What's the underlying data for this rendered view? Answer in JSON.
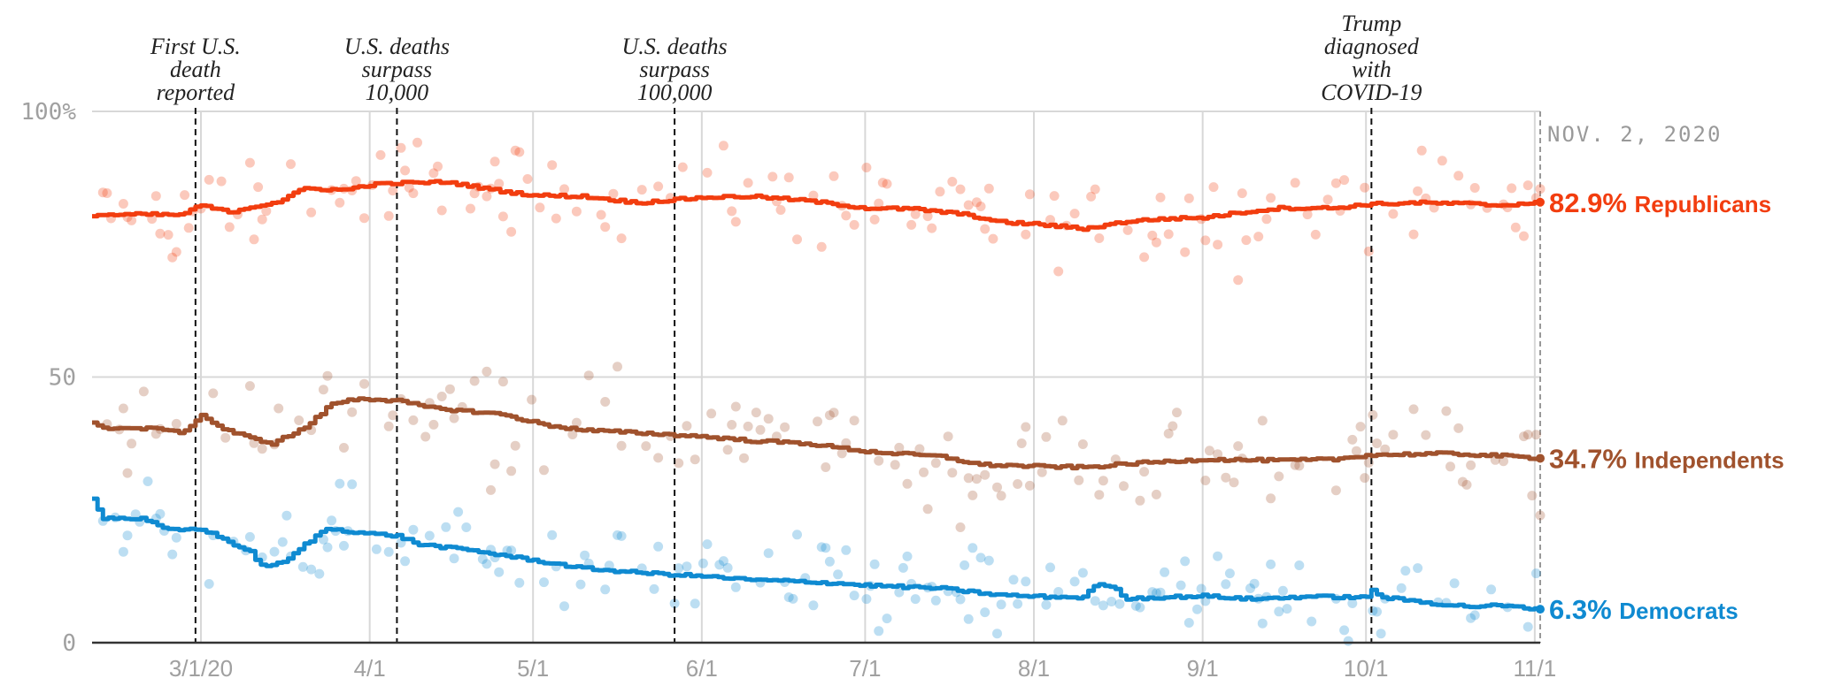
{
  "colors": {
    "republicans": "#f23d0f",
    "independents": "#a0522d",
    "democrats": "#0f8ad1",
    "grid": "#d8d8d8",
    "axis": "#333333"
  },
  "chart_data": {
    "type": "line",
    "date_stamp": "NOV. 2, 2020",
    "x_start": "2020-02-10",
    "x_end": "2020-11-02",
    "ylim": [
      0,
      100
    ],
    "y_ticks": [
      {
        "value": 0,
        "label": "0"
      },
      {
        "value": 50,
        "label": "50"
      },
      {
        "value": 100,
        "label": "100%"
      }
    ],
    "x_ticks": [
      {
        "date": "2020-03-01",
        "label": "3/1/20"
      },
      {
        "date": "2020-04-01",
        "label": "4/1"
      },
      {
        "date": "2020-05-01",
        "label": "5/1"
      },
      {
        "date": "2020-06-01",
        "label": "6/1"
      },
      {
        "date": "2020-07-01",
        "label": "7/1"
      },
      {
        "date": "2020-08-01",
        "label": "8/1"
      },
      {
        "date": "2020-09-01",
        "label": "9/1"
      },
      {
        "date": "2020-10-01",
        "label": "10/1"
      },
      {
        "date": "2020-11-01",
        "label": "11/1"
      }
    ],
    "events": [
      {
        "date": "2020-02-29",
        "lines": [
          "First U.S.",
          "death",
          "reported"
        ]
      },
      {
        "date": "2020-04-06",
        "lines": [
          "U.S. deaths",
          "surpass",
          "10,000"
        ]
      },
      {
        "date": "2020-05-27",
        "lines": [
          "U.S. deaths",
          "surpass",
          "100,000"
        ]
      },
      {
        "date": "2020-10-02",
        "lines": [
          "Trump",
          "diagnosed",
          "with",
          "COVID-19"
        ]
      }
    ],
    "series": [
      {
        "key": "republicans",
        "end_value": "82.9%",
        "end_name": "Republicans",
        "points": [
          [
            "2020-02-10",
            80.5
          ],
          [
            "2020-02-20",
            80.6
          ],
          [
            "2020-02-26",
            80.5
          ],
          [
            "2020-03-01",
            82.3
          ],
          [
            "2020-03-06",
            81.0
          ],
          [
            "2020-03-10",
            82.0
          ],
          [
            "2020-03-15",
            83.0
          ],
          [
            "2020-03-20",
            85.5
          ],
          [
            "2020-03-27",
            85.2
          ],
          [
            "2020-04-01",
            86.2
          ],
          [
            "2020-04-06",
            86.5
          ],
          [
            "2020-04-15",
            86.7
          ],
          [
            "2020-04-25",
            85.0
          ],
          [
            "2020-05-01",
            84.2
          ],
          [
            "2020-05-10",
            84.0
          ],
          [
            "2020-05-20",
            82.8
          ],
          [
            "2020-06-01",
            83.8
          ],
          [
            "2020-06-10",
            84.0
          ],
          [
            "2020-06-20",
            83.2
          ],
          [
            "2020-07-01",
            81.8
          ],
          [
            "2020-07-10",
            81.6
          ],
          [
            "2020-07-20",
            80.5
          ],
          [
            "2020-07-25",
            79.2
          ],
          [
            "2020-08-01",
            78.8
          ],
          [
            "2020-08-10",
            77.9
          ],
          [
            "2020-08-18",
            79.3
          ],
          [
            "2020-08-25",
            79.8
          ],
          [
            "2020-09-01",
            80.0
          ],
          [
            "2020-09-08",
            81.0
          ],
          [
            "2020-09-15",
            81.8
          ],
          [
            "2020-09-25",
            81.8
          ],
          [
            "2020-10-01",
            82.5
          ],
          [
            "2020-10-10",
            82.8
          ],
          [
            "2020-10-20",
            82.6
          ],
          [
            "2020-10-25",
            82.3
          ],
          [
            "2020-11-02",
            82.9
          ]
        ]
      },
      {
        "key": "independents",
        "end_value": "34.7%",
        "end_name": "Independents",
        "points": [
          [
            "2020-02-10",
            41.2
          ],
          [
            "2020-02-13",
            40.4
          ],
          [
            "2020-02-24",
            40.2
          ],
          [
            "2020-02-26",
            39.2
          ],
          [
            "2020-03-01",
            42.8
          ],
          [
            "2020-03-05",
            40.2
          ],
          [
            "2020-03-10",
            38.5
          ],
          [
            "2020-03-14",
            37.5
          ],
          [
            "2020-03-20",
            40.5
          ],
          [
            "2020-03-25",
            45.0
          ],
          [
            "2020-03-30",
            46.0
          ],
          [
            "2020-04-06",
            45.5
          ],
          [
            "2020-04-12",
            44.2
          ],
          [
            "2020-04-25",
            43.0
          ],
          [
            "2020-05-03",
            41.0
          ],
          [
            "2020-05-10",
            40.0
          ],
          [
            "2020-05-20",
            39.5
          ],
          [
            "2020-06-01",
            38.8
          ],
          [
            "2020-06-10",
            38.0
          ],
          [
            "2020-06-20",
            37.5
          ],
          [
            "2020-07-01",
            36.0
          ],
          [
            "2020-07-15",
            35.0
          ],
          [
            "2020-07-22",
            33.5
          ],
          [
            "2020-08-01",
            33.2
          ],
          [
            "2020-08-10",
            33.0
          ],
          [
            "2020-08-20",
            33.8
          ],
          [
            "2020-09-01",
            34.5
          ],
          [
            "2020-09-15",
            34.3
          ],
          [
            "2020-09-25",
            34.5
          ],
          [
            "2020-10-01",
            35.3
          ],
          [
            "2020-10-15",
            35.6
          ],
          [
            "2020-10-25",
            35.2
          ],
          [
            "2020-11-02",
            34.7
          ]
        ]
      },
      {
        "key": "democrats",
        "end_value": "6.3%",
        "end_name": "Democrats",
        "points": [
          [
            "2020-02-10",
            27.0
          ],
          [
            "2020-02-12",
            23.5
          ],
          [
            "2020-02-19",
            23.3
          ],
          [
            "2020-02-24",
            21.2
          ],
          [
            "2020-03-01",
            21.4
          ],
          [
            "2020-03-05",
            19.5
          ],
          [
            "2020-03-10",
            17.0
          ],
          [
            "2020-03-12",
            14.5
          ],
          [
            "2020-03-16",
            15.0
          ],
          [
            "2020-03-20",
            18.5
          ],
          [
            "2020-03-24",
            21.5
          ],
          [
            "2020-04-01",
            20.5
          ],
          [
            "2020-04-06",
            20.1
          ],
          [
            "2020-04-10",
            18.5
          ],
          [
            "2020-04-20",
            17.3
          ],
          [
            "2020-05-01",
            15.5
          ],
          [
            "2020-05-10",
            14.0
          ],
          [
            "2020-05-20",
            13.2
          ],
          [
            "2020-06-01",
            12.5
          ],
          [
            "2020-06-10",
            11.8
          ],
          [
            "2020-06-20",
            11.5
          ],
          [
            "2020-07-01",
            10.8
          ],
          [
            "2020-07-15",
            10.2
          ],
          [
            "2020-07-25",
            9.0
          ],
          [
            "2020-08-01",
            8.7
          ],
          [
            "2020-08-10",
            8.5
          ],
          [
            "2020-08-12",
            10.8
          ],
          [
            "2020-08-15",
            10.7
          ],
          [
            "2020-08-18",
            8.3
          ],
          [
            "2020-09-01",
            8.8
          ],
          [
            "2020-09-10",
            8.2
          ],
          [
            "2020-09-20",
            8.7
          ],
          [
            "2020-10-01",
            8.5
          ],
          [
            "2020-10-02",
            10.0
          ],
          [
            "2020-10-04",
            8.5
          ],
          [
            "2020-10-15",
            7.2
          ],
          [
            "2020-10-20",
            6.8
          ],
          [
            "2020-10-25",
            7.0
          ],
          [
            "2020-11-02",
            6.3
          ]
        ]
      }
    ]
  }
}
